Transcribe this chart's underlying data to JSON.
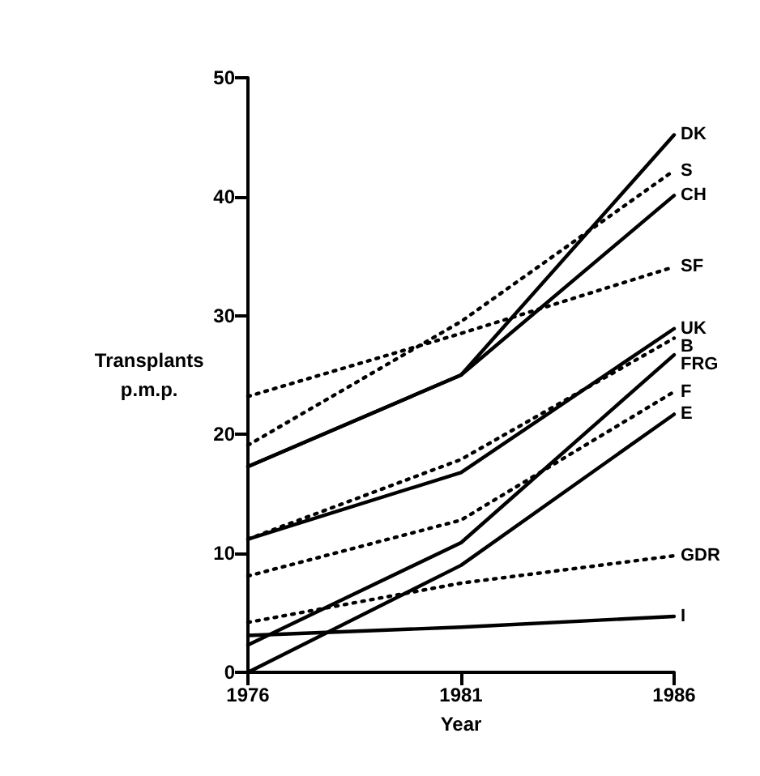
{
  "chart_data": {
    "type": "line",
    "xlabel": "Year",
    "ylabel": "Transplants\np.m.p.",
    "x": [
      1976,
      1981,
      1986
    ],
    "xlim": [
      1976,
      1986
    ],
    "xticks": [
      1976,
      1981,
      1986
    ],
    "ylim": [
      0,
      50
    ],
    "yticks": [
      0,
      10,
      20,
      30,
      40,
      50
    ],
    "grid": false,
    "legend": false,
    "marker": "none",
    "series": [
      {
        "name": "DK",
        "color": "#000000",
        "line_style": "solid",
        "values": [
          17.3,
          25,
          45.2
        ]
      },
      {
        "name": "S",
        "color": "#000000",
        "line_style": "dotted",
        "values": [
          19.1,
          29.5,
          42.2
        ]
      },
      {
        "name": "CH",
        "color": "#000000",
        "line_style": "solid",
        "values": [
          17.3,
          25,
          40.1
        ]
      },
      {
        "name": "SF",
        "color": "#000000",
        "line_style": "dotted",
        "values": [
          23.2,
          28.5,
          34.1
        ]
      },
      {
        "name": "UK",
        "color": "#000000",
        "line_style": "solid",
        "values": [
          11.2,
          16.8,
          28.9
        ]
      },
      {
        "name": "B",
        "color": "#000000",
        "line_style": "dotted",
        "values": [
          11.2,
          17.9,
          28.1
        ]
      },
      {
        "name": "FRG",
        "color": "#000000",
        "line_style": "solid",
        "values": [
          2.3,
          10.9,
          26.7
        ]
      },
      {
        "name": "F",
        "color": "#000000",
        "line_style": "dotted",
        "values": [
          8.1,
          12.8,
          23.6
        ]
      },
      {
        "name": "E",
        "color": "#000000",
        "line_style": "solid",
        "values": [
          0,
          9,
          21.7
        ]
      },
      {
        "name": "GDR",
        "color": "#000000",
        "line_style": "dotted",
        "values": [
          4.2,
          7.5,
          9.8
        ]
      },
      {
        "name": "I",
        "color": "#000000",
        "line_style": "solid",
        "values": [
          3.1,
          3.8,
          4.7
        ]
      }
    ]
  }
}
